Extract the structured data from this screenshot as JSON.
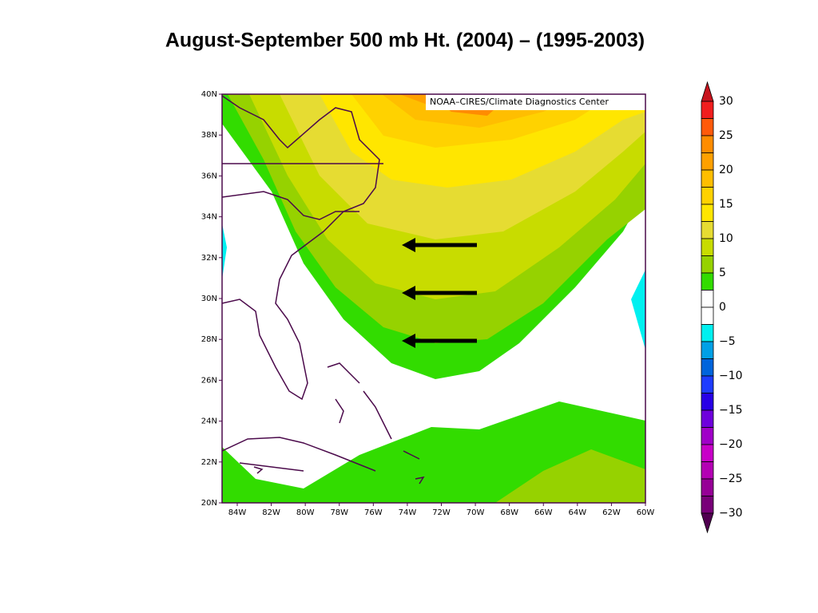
{
  "title": "August-September 500 mb Ht. (2004) – (1995-2003)",
  "credit": "NOAA–CIRES/Climate Diagnostics Center",
  "lat_labels": [
    "40N",
    "38N",
    "36N",
    "34N",
    "32N",
    "30N",
    "28N",
    "26N",
    "24N",
    "22N",
    "20N"
  ],
  "lon_labels": [
    "84W",
    "82W",
    "80W",
    "78W",
    "76W",
    "74W",
    "72W",
    "70W",
    "68W",
    "66W",
    "64W",
    "62W",
    "60W"
  ],
  "colorbar": {
    "labels": [
      "30",
      "25",
      "20",
      "15",
      "10",
      "5",
      "0",
      "−5",
      "−10",
      "−15",
      "−20",
      "−25",
      "−30"
    ],
    "top_color": "#c8141e",
    "bottom_color": "#500050",
    "colors": [
      "#f01e1e",
      "#ff5a0a",
      "#ff8c00",
      "#ffa000",
      "#ffbe00",
      "#ffd200",
      "#ffe600",
      "#e6dc32",
      "#c8dc00",
      "#96d200",
      "#32dc00",
      "#ffffff",
      "#ffffff",
      "#00f0f0",
      "#00a0e6",
      "#0064dc",
      "#1e3cff",
      "#2800e6",
      "#6e00dc",
      "#a000c8",
      "#c800c8",
      "#b400b4",
      "#960096",
      "#780078"
    ]
  }
}
